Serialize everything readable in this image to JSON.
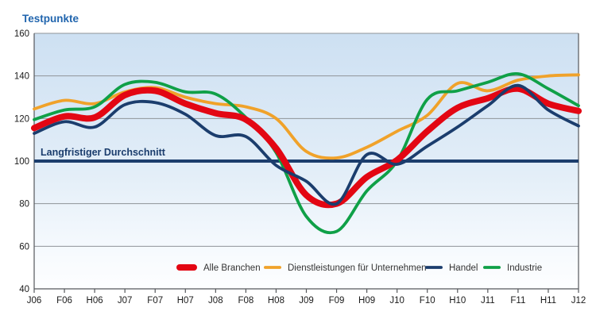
{
  "title": "Testpunkte",
  "reference_line": {
    "label": "Langfristiger Durchschnitt",
    "value": 100
  },
  "axis": {
    "y_ticks": [
      160,
      140,
      120,
      100,
      80,
      60,
      40
    ],
    "x_labels": [
      "J06",
      "F06",
      "H06",
      "J07",
      "F07",
      "H07",
      "J08",
      "F08",
      "H08",
      "J09",
      "F09",
      "H09",
      "J10",
      "F10",
      "H10",
      "J11",
      "F11",
      "H11",
      "J12"
    ]
  },
  "legend": {
    "items": [
      "Alle Branchen",
      "Dienstleistungen für Unternehmen",
      "Handel",
      "Industrie"
    ]
  },
  "colors": {
    "title_blue": "#2165ae",
    "red": "#e30613",
    "orange": "#f0a22a",
    "navy": "#1b3d6d",
    "green": "#0fa047",
    "grid": "#8f9398",
    "frame": "#55585c",
    "axis_text": "#1a1a1a",
    "legend_text": "#333333",
    "bg_top": "#cde0f2",
    "bg_bottom": "#fdfeff"
  },
  "chart_data": {
    "type": "line",
    "title": "Testpunkte",
    "xlabel": "",
    "ylabel": "Testpunkte",
    "ylim": [
      40,
      160
    ],
    "ytick_step": 20,
    "grid": true,
    "legend_position": "bottom-inside",
    "background": "vertical light-blue gradient",
    "categories": [
      "J06",
      "F06",
      "H06",
      "J07",
      "F07",
      "H07",
      "J08",
      "F08",
      "H08",
      "J09",
      "F09",
      "H09",
      "J10",
      "F10",
      "H10",
      "J11",
      "F11",
      "H11",
      "J12"
    ],
    "reference_line": {
      "value": 100,
      "label": "Langfristiger Durchschnitt"
    },
    "series": [
      {
        "name": "Alle Branchen",
        "color": "#e30613",
        "stroke_width": 8,
        "values": [
          115.5,
          121,
          120.5,
          131,
          133,
          127,
          122.5,
          119.5,
          106,
          84,
          80,
          92.5,
          100.5,
          114,
          125,
          129.5,
          134,
          127,
          123.5
        ]
      },
      {
        "name": "Dienstleistungen für Unternehmen",
        "color": "#f0a22a",
        "stroke_width": 3.8,
        "values": [
          124.5,
          128.5,
          127,
          132.5,
          134.5,
          130,
          127,
          125.5,
          120,
          104.5,
          101.5,
          106.5,
          114,
          121.5,
          136.5,
          133,
          138,
          140,
          140.5
        ]
      },
      {
        "name": "Handel",
        "color": "#1b3d6d",
        "stroke_width": 3.8,
        "values": [
          113,
          118.5,
          116,
          126.5,
          127.5,
          122,
          112,
          111.5,
          98,
          90.5,
          80,
          103,
          98.5,
          107,
          116,
          126,
          135.5,
          124,
          116.5
        ]
      },
      {
        "name": "Industrie",
        "color": "#0fa047",
        "stroke_width": 3.8,
        "values": [
          119.5,
          124,
          125.5,
          136,
          137,
          132.5,
          131.5,
          120.5,
          104,
          74,
          67,
          86,
          100,
          129,
          133,
          137,
          141,
          134,
          126
        ]
      }
    ]
  }
}
